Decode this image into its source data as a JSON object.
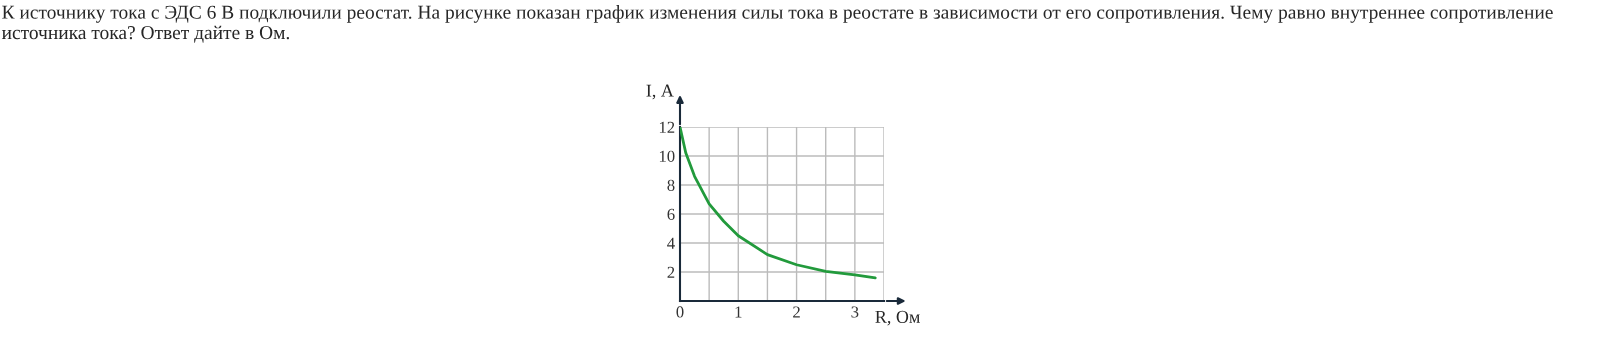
{
  "chart_data": {
    "type": "line",
    "title": "К источнику тока с ЭДС 6 В подключили реостат. На рисунке показан график изменения силы тока в реостате в зависимости от его сопротивления. Чему равно внутреннее сопротивление источника тока? Ответ дайте в Ом.",
    "xlabel": "R, Ом",
    "ylabel": "I, А",
    "x": [
      0,
      0.1,
      0.25,
      0.5,
      0.75,
      1,
      1.5,
      2,
      2.5,
      3,
      3.35
    ],
    "series": [
      {
        "color": "#229a3c",
        "values": [
          12,
          10.2,
          8.6,
          6.7,
          5.5,
          4.5,
          3.2,
          2.5,
          2.05,
          1.8,
          1.6
        ]
      }
    ],
    "xlim": [
      0,
      3.5
    ],
    "xticks": [
      0,
      {
        "value": 0.5,
        "label": null
      },
      1,
      {
        "value": 1.5,
        "label": null
      },
      2,
      {
        "value": 2.5,
        "label": null
      },
      3,
      {
        "value": 3.5,
        "label": null
      }
    ],
    "ylim": [
      0,
      12
    ],
    "yticks": [
      2,
      4,
      6,
      8,
      10,
      12
    ],
    "grid": true,
    "marker": "none",
    "line_style": "solid",
    "legend": false
  }
}
